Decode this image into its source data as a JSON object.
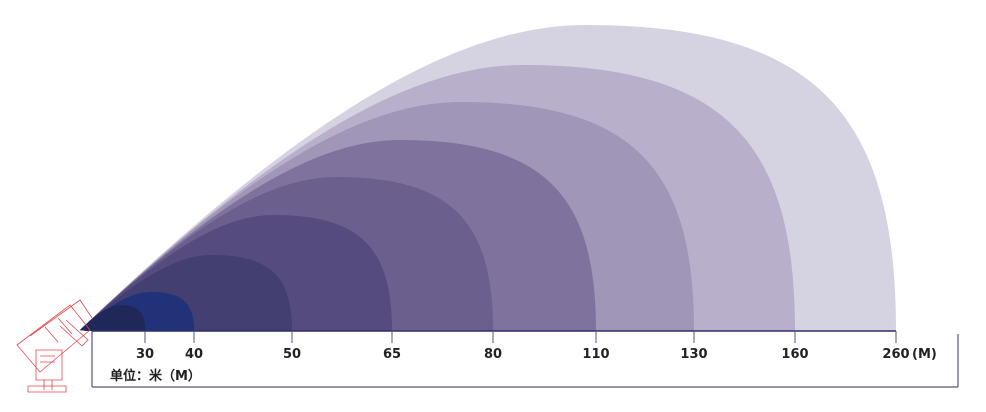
{
  "diagram": {
    "ranges_m": [
      30,
      40,
      50,
      65,
      80,
      110,
      130,
      160,
      260
    ],
    "tick_labels": [
      "30",
      "40",
      "50",
      "65",
      "80",
      "110",
      "130",
      "160",
      "260"
    ],
    "axis_unit": "(M)",
    "unit_label": "单位：米（M）",
    "plume_colors": [
      "#1f2858",
      "#223278",
      "#433f70",
      "#564b7e",
      "#6b5f8e",
      "#7f739d",
      "#a096b7",
      "#b8b0ca",
      "#d5d3e1"
    ],
    "cannon_color": "#e8484f",
    "axis_color": "#56557e"
  }
}
